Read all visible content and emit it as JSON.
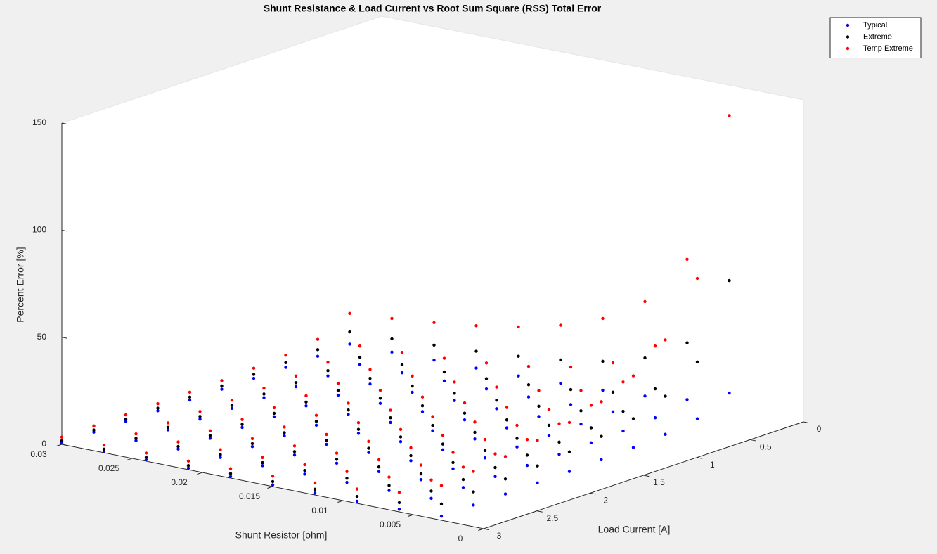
{
  "chart_data": {
    "type": "scatter3d",
    "title": "Shunt Resistance & Load Current vs Root Sum Square (RSS) Total Error",
    "xlabel": "Shunt Resistor [ohm]",
    "ylabel": "Load Current [A]",
    "zlabel": "Percent Error [%]",
    "x": [
      0.003,
      0.006,
      0.009,
      0.012,
      0.015,
      0.018,
      0.021,
      0.024,
      0.027,
      0.03
    ],
    "y": [
      0.3,
      0.6,
      0.9,
      1.2,
      1.5,
      1.8,
      2.1,
      2.4,
      2.7,
      3
    ],
    "xlim": [
      0,
      0.03
    ],
    "ylim": [
      0,
      3
    ],
    "zlim": [
      0,
      150
    ],
    "xticks": [
      0,
      0.005,
      0.01,
      0.015,
      0.02,
      0.025,
      0.03
    ],
    "yticks": [
      0,
      0.5,
      1,
      1.5,
      2,
      2.5,
      3
    ],
    "zticks": [
      0,
      50,
      100,
      150
    ],
    "grid": false,
    "legend": "upper right",
    "series": [
      {
        "name": "Typical",
        "color": "#0000ff",
        "values": [
          [
            14.5,
            7.5,
            5.2,
            4.0,
            3.3,
            2.8,
            2.5,
            2.3,
            2.1,
            1.9
          ],
          [
            7.5,
            4.0,
            2.8,
            2.3,
            1.9,
            1.7,
            1.5,
            1.4,
            1.3,
            1.2
          ],
          [
            5.2,
            2.8,
            2.1,
            1.7,
            1.4,
            1.3,
            1.2,
            1.1,
            1.0,
            1.0
          ],
          [
            4.0,
            2.3,
            1.7,
            1.4,
            1.2,
            1.1,
            1.0,
            0.9,
            0.9,
            0.9
          ],
          [
            3.3,
            1.9,
            1.4,
            1.2,
            1.1,
            1.0,
            0.9,
            0.9,
            0.8,
            0.8
          ],
          [
            2.8,
            1.7,
            1.3,
            1.1,
            1.0,
            0.9,
            0.8,
            0.8,
            0.8,
            0.7
          ],
          [
            2.5,
            1.5,
            1.2,
            1.0,
            0.9,
            0.8,
            0.8,
            0.8,
            0.7,
            0.7
          ],
          [
            2.3,
            1.4,
            1.1,
            0.9,
            0.9,
            0.8,
            0.8,
            0.7,
            0.7,
            0.7
          ],
          [
            2.1,
            1.3,
            1.0,
            0.9,
            0.8,
            0.8,
            0.7,
            0.7,
            0.7,
            0.7
          ],
          [
            1.9,
            1.2,
            1.0,
            0.9,
            0.8,
            0.7,
            0.7,
            0.7,
            0.7,
            0.6
          ]
        ]
      },
      {
        "name": "Extreme",
        "color": "#000000",
        "values": [
          [
            67,
            34,
            23,
            17.5,
            14.2,
            12,
            10.4,
            9.3,
            8.3,
            7.6
          ],
          [
            34,
            17.5,
            12,
            9.3,
            7.6,
            6.5,
            5.7,
            5.1,
            4.7,
            4.3
          ],
          [
            23,
            12,
            8.3,
            6.5,
            5.4,
            4.7,
            4.1,
            3.8,
            3.4,
            3.2
          ],
          [
            17.5,
            9.3,
            6.5,
            5.1,
            4.3,
            3.8,
            3.4,
            3.1,
            2.8,
            2.7
          ],
          [
            14.2,
            7.6,
            5.4,
            4.3,
            3.6,
            3.2,
            2.9,
            2.7,
            2.5,
            2.3
          ],
          [
            12,
            6.5,
            4.7,
            3.8,
            3.2,
            2.8,
            2.6,
            2.4,
            2.2,
            2.1
          ],
          [
            10.4,
            5.7,
            4.1,
            3.4,
            2.9,
            2.6,
            2.3,
            2.2,
            2.0,
            1.9
          ],
          [
            9.3,
            5.1,
            3.8,
            3.1,
            2.7,
            2.4,
            2.2,
            2.0,
            1.9,
            1.8
          ],
          [
            8.3,
            4.7,
            3.4,
            2.8,
            2.5,
            2.2,
            2.0,
            1.9,
            1.8,
            1.7
          ],
          [
            7.6,
            4.3,
            3.2,
            2.7,
            2.3,
            2.1,
            1.9,
            1.8,
            1.7,
            1.7
          ]
        ]
      },
      {
        "name": "Temp Extreme",
        "color": "#ff0000",
        "values": [
          [
            144,
            73,
            49.3,
            37.5,
            30.4,
            25.7,
            22.3,
            19.8,
            17.8,
            16.2
          ],
          [
            73,
            37.5,
            25.7,
            19.8,
            16.2,
            13.8,
            12.1,
            10.9,
            9.9,
            9.1
          ],
          [
            49.3,
            25.7,
            17.8,
            13.8,
            11.5,
            9.9,
            8.8,
            7.9,
            7.3,
            6.7
          ],
          [
            37.5,
            19.8,
            13.8,
            10.9,
            9.1,
            7.9,
            7.1,
            6.4,
            5.9,
            5.6
          ],
          [
            30.4,
            16.2,
            11.5,
            9.1,
            7.7,
            6.7,
            6.1,
            5.6,
            5.2,
            4.8
          ],
          [
            25.7,
            13.8,
            9.9,
            7.9,
            6.7,
            5.9,
            5.4,
            5.0,
            4.6,
            4.4
          ],
          [
            22.3,
            12.1,
            8.8,
            7.1,
            6.1,
            5.4,
            4.9,
            4.5,
            4.3,
            4.0
          ],
          [
            19.8,
            10.9,
            7.9,
            6.4,
            5.6,
            5.0,
            4.5,
            4.2,
            4.0,
            3.8
          ],
          [
            17.8,
            9.9,
            7.3,
            5.9,
            5.2,
            4.6,
            4.3,
            4.0,
            3.8,
            3.6
          ],
          [
            16.2,
            9.1,
            6.7,
            5.6,
            4.8,
            4.4,
            4.0,
            3.8,
            3.6,
            3.4
          ]
        ]
      }
    ]
  }
}
